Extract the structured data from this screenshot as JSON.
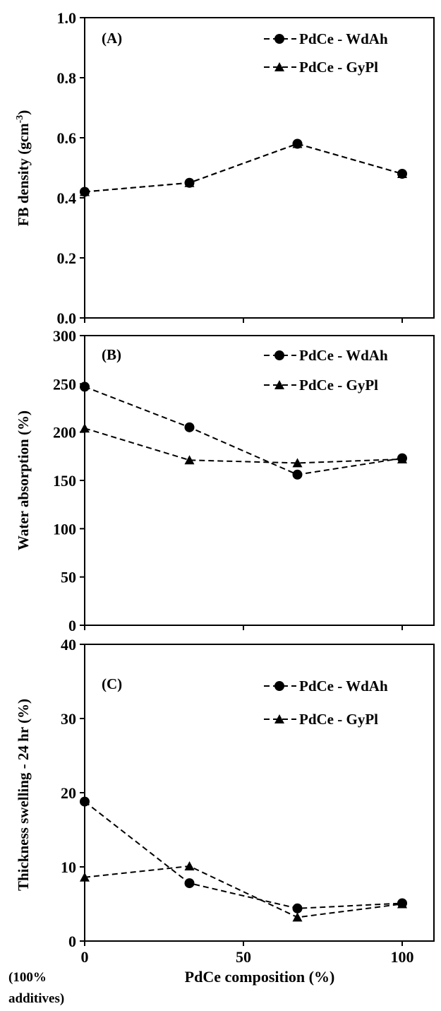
{
  "chart_data": [
    {
      "type": "line",
      "panel_label": "(A)",
      "ylabel": "FB density (gcm",
      "ylabel_sup": "-3",
      "ylabel_close": ")",
      "ylim": [
        0,
        1.0
      ],
      "yticks": [
        "0.0",
        "0.2",
        "0.4",
        "0.6",
        "0.8",
        "1.0"
      ],
      "ytick_values": [
        0,
        0.2,
        0.4,
        0.6,
        0.8,
        1.0
      ],
      "x": [
        0,
        33,
        67,
        100
      ],
      "series": [
        {
          "name": "PdCe - WdAh",
          "marker": "circle",
          "values": [
            0.42,
            0.45,
            0.58,
            0.48
          ]
        },
        {
          "name": "PdCe - GyPl",
          "marker": "triangle",
          "values": [
            0.42,
            0.45,
            0.58,
            0.48
          ]
        }
      ]
    },
    {
      "type": "line",
      "panel_label": "(B)",
      "ylabel": "Water absorption  (%)",
      "ylim": [
        0,
        300
      ],
      "yticks": [
        "0",
        "50",
        "100",
        "150",
        "200",
        "250",
        "300"
      ],
      "ytick_values": [
        0,
        50,
        100,
        150,
        200,
        250,
        300
      ],
      "x": [
        0,
        33,
        67,
        100
      ],
      "series": [
        {
          "name": "PdCe - WdAh",
          "marker": "circle",
          "values": [
            247,
            205,
            156,
            173
          ]
        },
        {
          "name": "PdCe - GyPl",
          "marker": "triangle",
          "values": [
            204,
            171,
            168,
            172
          ]
        }
      ]
    },
    {
      "type": "line",
      "panel_label": "(C)",
      "ylabel": "Thickness  swelling  - 24 hr (%)",
      "ylim": [
        0,
        40
      ],
      "yticks": [
        "0",
        "10",
        "20",
        "30",
        "40"
      ],
      "ytick_values": [
        0,
        10,
        20,
        30,
        40
      ],
      "x": [
        0,
        33,
        67,
        100
      ],
      "series": [
        {
          "name": "PdCe - WdAh",
          "marker": "circle",
          "values": [
            18.8,
            7.8,
            4.4,
            5.1
          ]
        },
        {
          "name": "PdCe - GyPl",
          "marker": "triangle",
          "values": [
            8.6,
            10.1,
            3.2,
            5.0
          ]
        }
      ]
    }
  ],
  "x_axis": {
    "xlabel": "PdCe composition  (%)",
    "xlim": [
      0,
      110
    ],
    "xticks": [
      "0",
      "50",
      "100"
    ],
    "xtick_values": [
      0,
      50,
      100
    ],
    "note_line1": "(100%",
    "note_line2": "additives)"
  },
  "colors": {
    "line": "#000000",
    "marker": "#000000",
    "axis": "#000000"
  }
}
